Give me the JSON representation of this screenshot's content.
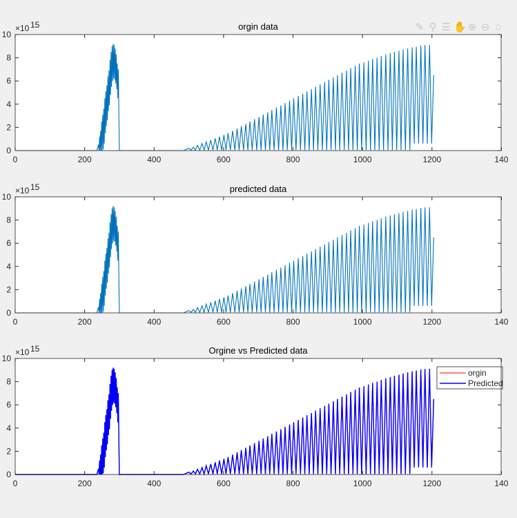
{
  "toolbar": {
    "icons": [
      "brush-icon",
      "datatip-icon",
      "legend-icon",
      "pan-hand-icon",
      "zoom-in-icon",
      "zoom-out-icon",
      "home-icon"
    ]
  },
  "colors": {
    "single": "#0072BD",
    "origin": "#ff0000",
    "predicted": "#0000ff"
  },
  "chart_data": [
    {
      "type": "line",
      "title": "orgin data",
      "xlim": [
        0,
        1400
      ],
      "ylim": [
        0,
        10
      ],
      "x_ticks": [
        "0",
        "200",
        "400",
        "600",
        "800",
        "1000",
        "1200",
        "140"
      ],
      "y_ticks": [
        "0",
        "2",
        "4",
        "6",
        "8",
        "10"
      ],
      "y_exponent": "×10",
      "y_exponent_power": "15",
      "grid": false,
      "legend": null,
      "series_source": "signal"
    },
    {
      "type": "line",
      "title": "predicted data",
      "xlim": [
        0,
        1400
      ],
      "ylim": [
        0,
        10
      ],
      "x_ticks": [
        "0",
        "200",
        "400",
        "600",
        "800",
        "1000",
        "1200",
        "140"
      ],
      "y_ticks": [
        "0",
        "2",
        "4",
        "6",
        "8",
        "10"
      ],
      "y_exponent": "×10",
      "y_exponent_power": "15",
      "grid": false,
      "legend": null,
      "series_source": "signal"
    },
    {
      "type": "line",
      "title": "Orgine vs Predicted data",
      "xlim": [
        0,
        1400
      ],
      "ylim": [
        0,
        10
      ],
      "x_ticks": [
        "0",
        "200",
        "400",
        "600",
        "800",
        "1000",
        "1200",
        "140"
      ],
      "y_ticks": [
        "0",
        "2",
        "4",
        "6",
        "8",
        "10"
      ],
      "y_exponent": "×10",
      "y_exponent_power": "15",
      "grid": false,
      "legend": "top-right",
      "legend_entries": [
        "orgin",
        "Predicted"
      ]
    }
  ],
  "signal": {
    "x_end": 1205,
    "cluster_drop_x": 300,
    "peaks": [
      [
        240,
        0.5
      ],
      [
        243,
        1.2
      ],
      [
        246,
        1.7
      ],
      [
        249,
        2.5
      ],
      [
        252,
        3.1
      ],
      [
        255,
        3.6
      ],
      [
        258,
        4.5
      ],
      [
        261,
        5.1
      ],
      [
        264,
        5.6
      ],
      [
        267,
        6.4
      ],
      [
        270,
        6.9
      ],
      [
        273,
        7.8
      ],
      [
        276,
        8.5
      ],
      [
        279,
        9.0
      ],
      [
        282,
        9.2
      ],
      [
        285,
        9.1
      ],
      [
        288,
        8.8
      ],
      [
        291,
        8.3
      ],
      [
        294,
        7.5
      ],
      [
        297,
        7.0
      ],
      [
        500,
        0.2
      ],
      [
        513,
        0.3
      ],
      [
        525,
        0.45
      ],
      [
        538,
        0.6
      ],
      [
        550,
        0.75
      ],
      [
        563,
        0.9
      ],
      [
        576,
        1.05
      ],
      [
        588,
        1.2
      ],
      [
        601,
        1.35
      ],
      [
        613,
        1.5
      ],
      [
        626,
        1.7
      ],
      [
        639,
        1.9
      ],
      [
        651,
        2.1
      ],
      [
        664,
        2.3
      ],
      [
        676,
        2.5
      ],
      [
        689,
        2.7
      ],
      [
        702,
        2.9
      ],
      [
        714,
        3.1
      ],
      [
        727,
        3.3
      ],
      [
        739,
        3.5
      ],
      [
        752,
        3.7
      ],
      [
        765,
        3.9
      ],
      [
        777,
        4.1
      ],
      [
        790,
        4.3
      ],
      [
        802,
        4.5
      ],
      [
        815,
        4.7
      ],
      [
        828,
        4.9
      ],
      [
        840,
        5.1
      ],
      [
        853,
        5.3
      ],
      [
        865,
        5.5
      ],
      [
        878,
        5.7
      ],
      [
        891,
        5.9
      ],
      [
        903,
        6.1
      ],
      [
        916,
        6.3
      ],
      [
        928,
        6.5
      ],
      [
        941,
        6.7
      ],
      [
        954,
        6.9
      ],
      [
        966,
        7.1
      ],
      [
        979,
        7.3
      ],
      [
        991,
        7.5
      ],
      [
        1004,
        7.6
      ],
      [
        1017,
        7.75
      ],
      [
        1029,
        7.9
      ],
      [
        1042,
        8.0
      ],
      [
        1054,
        8.15
      ],
      [
        1067,
        8.3
      ],
      [
        1080,
        8.4
      ],
      [
        1092,
        8.5
      ],
      [
        1105,
        8.6
      ],
      [
        1117,
        8.7
      ],
      [
        1130,
        8.8
      ],
      [
        1143,
        8.9
      ],
      [
        1155,
        8.95
      ],
      [
        1168,
        9.05
      ],
      [
        1180,
        9.1
      ],
      [
        1193,
        9.1
      ],
      [
        1205,
        6.5
      ]
    ]
  }
}
